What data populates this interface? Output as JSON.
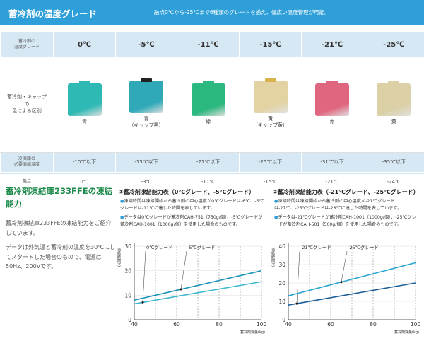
{
  "header": {
    "title": "蓄冷剤の温度グレード",
    "note": "融点0℃から-25℃まで6種類のグレードを揃え、幅広い温度管理が可能。"
  },
  "grade_table": {
    "row_labels": {
      "grade": "蓄冷剤の\n温度グレード",
      "color": "蓄冷剤・キャップ\nの\n色による区別",
      "temp": "冷凍庫の\n必要凍結温度",
      "melt": "融点"
    },
    "grades": [
      {
        "temp": "0℃",
        "color_name": "青",
        "pack_color": "#2fb9b4",
        "cap_color": "#2fb9b4",
        "freeze": "-10℃以下",
        "melt": "0℃"
      },
      {
        "temp": "-5℃",
        "color_name": "青\n（キャップ黒）",
        "pack_color": "#2fa9b8",
        "cap_color": "#222222",
        "freeze": "-15℃以下",
        "melt": "-3℃"
      },
      {
        "temp": "-11℃",
        "color_name": "緑",
        "pack_color": "#2bb87e",
        "cap_color": "#2bb87e",
        "freeze": "-21℃以下",
        "melt": "-11℃"
      },
      {
        "temp": "-15℃",
        "color_name": "黄\n（キャップ黄）",
        "pack_color": "#e3d2a2",
        "cap_color": "#d8b24a",
        "freeze": "-25℃以下",
        "melt": "-15℃"
      },
      {
        "temp": "-21℃",
        "color_name": "赤",
        "pack_color": "#e0657f",
        "cap_color": "#e0657f",
        "freeze": "-31℃以下",
        "melt": "-21℃"
      },
      {
        "temp": "-25℃",
        "color_name": "黄",
        "pack_color": "#dbd0a6",
        "cap_color": "#dbd0a6",
        "freeze": "-35℃以下",
        "melt": "-24℃"
      }
    ]
  },
  "freezing_section": {
    "title": "蓄冷剤凍結庫233FFEの凍結能力",
    "text1": "蓄冷剤凍結庫233FFEの凍結能力をご紹介しています。",
    "text2": "データは外気温と蓄冷剤の温度を30℃にしてスタートした場合のもので、電源は50Hz、200Vです。"
  },
  "table1": {
    "heading": "①蓄冷剤凍結能力表（0℃グレード、-5℃グレード）",
    "bullet1": "凍結時間は凍結開始から蓄冷剤の中心温度が0℃グレードは-6℃、-5℃グレードは-11℃に達した時間を表しています。",
    "bullet2": "データは0℃グレードが蓄冷剤CAH-751（750g/個）、-5℃グレードが蓄冷剤CAH-1001（1000g/個）を使用した場合のものです。"
  },
  "table2": {
    "heading": "②蓄冷剤凍結能力表（-21℃グレード、-25℃グレード）",
    "bullet1": "凍結時間は凍結開始から蓄冷剤の中心温度が-21℃グレードは-27℃、-25℃グレードは-28℃に達した時間を表しています。",
    "bullet2": "データは-21℃グレードが蓄冷剤CAH-1001（1000g/個）、-25℃グレードが蓄冷剤CAH-501（500g/個）を使用した場合のものです。"
  },
  "chart_data": [
    {
      "type": "line",
      "ylabel": "凍結時間(h)",
      "xlabel": "蓄冷剤質量(kg)",
      "xlim": [
        40,
        100
      ],
      "ylim": [
        0,
        30
      ],
      "xticks": [
        "40",
        "60",
        "80",
        "100"
      ],
      "yticks": [
        "0",
        "10",
        "20",
        "30"
      ],
      "grid": "dashed vertical",
      "series": [
        {
          "name": "0℃グレード",
          "color": "#3cb8cf",
          "x": [
            40,
            100
          ],
          "y": [
            6.5,
            15.5
          ],
          "marker_x": 44
        },
        {
          "name": "-5℃グレード",
          "color": "#1a93b7",
          "x": [
            40,
            100
          ],
          "y": [
            8,
            20
          ],
          "marker_x": 62
        }
      ]
    },
    {
      "type": "line",
      "ylabel": "凍結時間(h)",
      "xlabel": "蓄冷剤質量(kg)",
      "xlim": [
        40,
        100
      ],
      "ylim": [
        0,
        40
      ],
      "xticks": [
        "40",
        "60",
        "80",
        "100"
      ],
      "yticks": [
        "0",
        "10",
        "20",
        "30",
        "40"
      ],
      "grid": "dashed vertical",
      "series": [
        {
          "name": "-21℃グレード",
          "color": "#1d5f99",
          "x": [
            40,
            100
          ],
          "y": [
            8,
            20
          ],
          "marker_x": 44
        },
        {
          "name": "-25℃グレード",
          "color": "#2aa5d1",
          "x": [
            40,
            100
          ],
          "y": [
            13,
            31
          ],
          "marker_x": 65
        }
      ]
    }
  ]
}
